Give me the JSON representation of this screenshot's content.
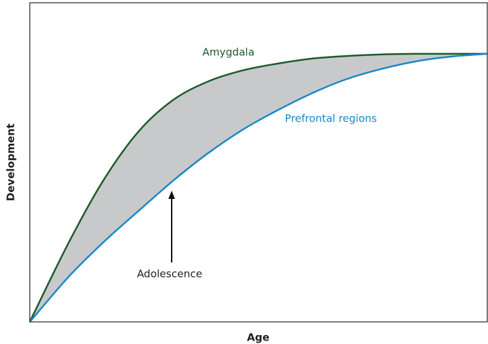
{
  "chart_data": {
    "type": "line",
    "x_label": "Age",
    "y_label": "Development",
    "x": [
      0,
      8.6,
      16.2,
      23.8,
      31.3,
      38.9,
      46.5,
      54,
      61.6,
      69.1,
      76.7,
      84.3,
      91.8,
      100
    ],
    "series": [
      {
        "name": "Amygdala",
        "color": "#1d5a2b",
        "values": [
          0,
          25.1,
          44.6,
          59.7,
          69.5,
          75.3,
          78.8,
          80.9,
          82.5,
          83.3,
          83.8,
          84,
          84,
          84
        ]
      },
      {
        "name": "Prefrontal regions",
        "color": "#1b87c8",
        "values": [
          0,
          14.3,
          25.1,
          34.8,
          44.2,
          52.8,
          60.2,
          66.2,
          71.6,
          76,
          79.2,
          81.6,
          83.1,
          84
        ]
      }
    ],
    "fill_between": "#c8c9ca",
    "annotations": [
      {
        "text": "Adolescence"
      }
    ],
    "xlim": [
      0,
      100
    ],
    "ylim": [
      0,
      100
    ]
  }
}
